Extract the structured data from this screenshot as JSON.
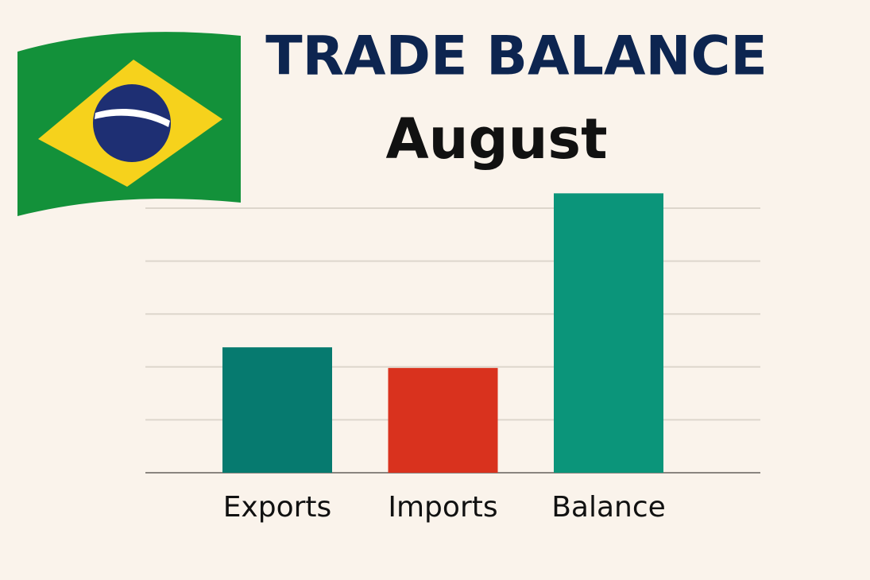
{
  "chart_data": {
    "type": "bar",
    "title": "TRADE BALANCE",
    "subtitle": "August",
    "categories": [
      "Exports",
      "Imports",
      "Balance"
    ],
    "values": [
      2.37,
      1.98,
      5.28
    ],
    "colors": [
      "#067a6f",
      "#d9321e",
      "#0b957a"
    ],
    "ylim": [
      0,
      5.3
    ],
    "yticks": [
      0,
      1,
      2,
      3,
      4,
      5
    ],
    "grid": true
  }
}
